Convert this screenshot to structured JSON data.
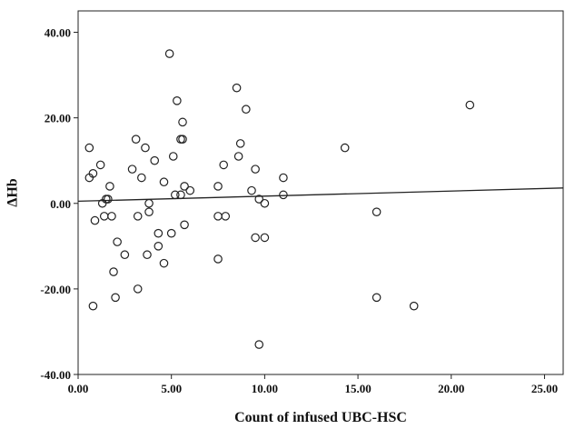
{
  "chart_data": {
    "type": "scatter",
    "title": "",
    "xlabel": "Count of infused UBC-HSC",
    "ylabel": "ΔHb",
    "xlim": [
      0,
      26
    ],
    "ylim": [
      -40,
      45
    ],
    "x_ticks": [
      0,
      5,
      10,
      15,
      20,
      25
    ],
    "y_ticks": [
      -40,
      -20,
      0,
      20,
      40
    ],
    "x_tick_labels": [
      "0.00",
      "5.00",
      "10.00",
      "15.00",
      "20.00",
      "25.00"
    ],
    "y_tick_labels": [
      "-40.00",
      "-20.00",
      "0.00",
      "20.00",
      "40.00"
    ],
    "grid": false,
    "marker": "open-circle",
    "marker_color": "#222222",
    "line_color": "#222222",
    "fit_line": {
      "x": [
        0,
        26
      ],
      "y": [
        0.5,
        3.6
      ]
    },
    "points": [
      {
        "x": 0.6,
        "y": 13
      },
      {
        "x": 0.6,
        "y": 6
      },
      {
        "x": 0.8,
        "y": 7
      },
      {
        "x": 0.8,
        "y": -24
      },
      {
        "x": 0.9,
        "y": -4
      },
      {
        "x": 1.2,
        "y": 9
      },
      {
        "x": 1.3,
        "y": 0
      },
      {
        "x": 1.4,
        "y": -3
      },
      {
        "x": 1.5,
        "y": 1
      },
      {
        "x": 1.6,
        "y": 1
      },
      {
        "x": 1.7,
        "y": 4
      },
      {
        "x": 1.8,
        "y": -3
      },
      {
        "x": 1.9,
        "y": -16
      },
      {
        "x": 2.0,
        "y": -22
      },
      {
        "x": 2.1,
        "y": -9
      },
      {
        "x": 2.5,
        "y": -12
      },
      {
        "x": 2.9,
        "y": 8
      },
      {
        "x": 3.1,
        "y": 15
      },
      {
        "x": 3.2,
        "y": -3
      },
      {
        "x": 3.2,
        "y": -20
      },
      {
        "x": 3.4,
        "y": 6
      },
      {
        "x": 3.6,
        "y": 13
      },
      {
        "x": 3.7,
        "y": -12
      },
      {
        "x": 3.8,
        "y": -2
      },
      {
        "x": 3.8,
        "y": 0
      },
      {
        "x": 4.1,
        "y": 10
      },
      {
        "x": 4.3,
        "y": -7
      },
      {
        "x": 4.3,
        "y": -10
      },
      {
        "x": 4.6,
        "y": 5
      },
      {
        "x": 4.6,
        "y": -14
      },
      {
        "x": 4.9,
        "y": 35
      },
      {
        "x": 5.0,
        "y": -7
      },
      {
        "x": 5.1,
        "y": 11
      },
      {
        "x": 5.2,
        "y": 2
      },
      {
        "x": 5.3,
        "y": 24
      },
      {
        "x": 5.5,
        "y": 15
      },
      {
        "x": 5.5,
        "y": 2
      },
      {
        "x": 5.6,
        "y": 15
      },
      {
        "x": 5.6,
        "y": 19
      },
      {
        "x": 5.7,
        "y": 4
      },
      {
        "x": 5.7,
        "y": -5
      },
      {
        "x": 6.0,
        "y": 3
      },
      {
        "x": 7.5,
        "y": 4
      },
      {
        "x": 7.5,
        "y": -3
      },
      {
        "x": 7.5,
        "y": -13
      },
      {
        "x": 7.8,
        "y": 9
      },
      {
        "x": 7.9,
        "y": -3
      },
      {
        "x": 8.5,
        "y": 27
      },
      {
        "x": 8.6,
        "y": 11
      },
      {
        "x": 8.7,
        "y": 14
      },
      {
        "x": 9.0,
        "y": 22
      },
      {
        "x": 9.3,
        "y": 3
      },
      {
        "x": 9.5,
        "y": 8
      },
      {
        "x": 9.5,
        "y": -8
      },
      {
        "x": 9.7,
        "y": 1
      },
      {
        "x": 9.7,
        "y": -33
      },
      {
        "x": 10.0,
        "y": 0
      },
      {
        "x": 10.0,
        "y": -8
      },
      {
        "x": 11.0,
        "y": 6
      },
      {
        "x": 11.0,
        "y": 2
      },
      {
        "x": 14.3,
        "y": 13
      },
      {
        "x": 16.0,
        "y": -2
      },
      {
        "x": 16.0,
        "y": -22
      },
      {
        "x": 18.0,
        "y": -24
      },
      {
        "x": 21.0,
        "y": 23
      }
    ]
  }
}
